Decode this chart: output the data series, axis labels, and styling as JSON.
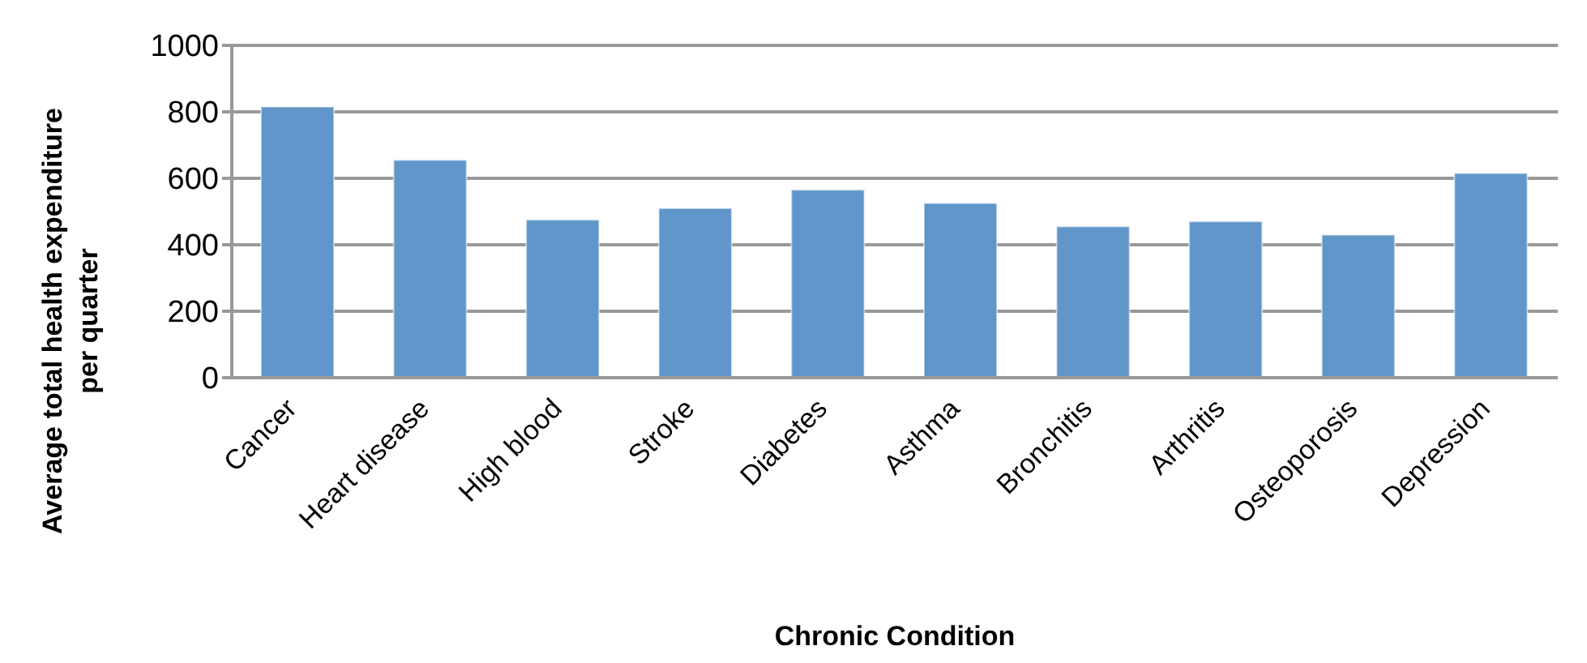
{
  "chart_data": {
    "type": "bar",
    "xlabel": "Chronic Condition",
    "ylabel": "Average total health expenditure per quarter",
    "categories": [
      "Cancer",
      "Heart disease",
      "High blood",
      "Stroke",
      "Diabetes",
      "Asthma",
      "Bronchitis",
      "Arthritis",
      "Osteoporosis",
      "Depression"
    ],
    "values": [
      815,
      655,
      475,
      510,
      565,
      525,
      455,
      470,
      430,
      615
    ],
    "color": "#6096c9",
    "ylim": [
      0,
      1000
    ],
    "yticks": [
      0,
      200,
      400,
      600,
      800,
      1000
    ],
    "grid": "y"
  }
}
